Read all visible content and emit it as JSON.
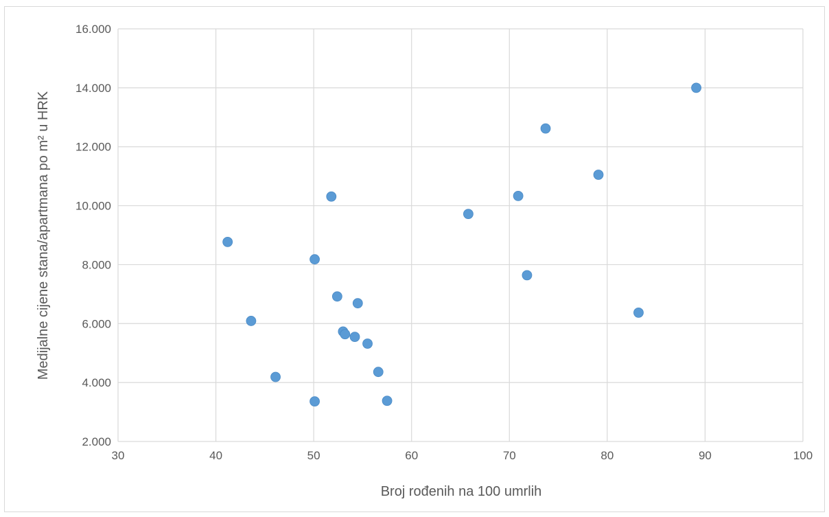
{
  "chart_data": {
    "type": "scatter",
    "title": "",
    "xlabel": "Broj rođenih na 100 umrlih",
    "ylabel": "Medijalne cijene stana/apartmana po m² u HRK",
    "xlim": [
      30,
      100
    ],
    "ylim": [
      2000,
      16000
    ],
    "x_ticks": [
      30,
      40,
      50,
      60,
      70,
      80,
      90,
      100
    ],
    "y_ticks": [
      2000,
      4000,
      6000,
      8000,
      10000,
      12000,
      14000,
      16000
    ],
    "x_tick_labels": [
      "30",
      "40",
      "50",
      "60",
      "70",
      "80",
      "90",
      "100"
    ],
    "y_tick_labels": [
      "2.000",
      "4.000",
      "6.000",
      "8.000",
      "10.000",
      "12.000",
      "14.000",
      "16.000"
    ],
    "grid": true,
    "legend": "none",
    "marker_color": "#5b9bd5",
    "series": [
      {
        "points": [
          {
            "x": 41.2,
            "y": 8770
          },
          {
            "x": 43.6,
            "y": 6090
          },
          {
            "x": 46.1,
            "y": 4190
          },
          {
            "x": 50.1,
            "y": 8180
          },
          {
            "x": 50.1,
            "y": 3360
          },
          {
            "x": 51.8,
            "y": 10310
          },
          {
            "x": 52.4,
            "y": 6920
          },
          {
            "x": 53.0,
            "y": 5730
          },
          {
            "x": 53.2,
            "y": 5640
          },
          {
            "x": 54.2,
            "y": 5550
          },
          {
            "x": 54.5,
            "y": 6690
          },
          {
            "x": 55.5,
            "y": 5320
          },
          {
            "x": 56.6,
            "y": 4360
          },
          {
            "x": 57.5,
            "y": 3380
          },
          {
            "x": 65.8,
            "y": 9720
          },
          {
            "x": 70.9,
            "y": 10330
          },
          {
            "x": 71.8,
            "y": 7640
          },
          {
            "x": 73.7,
            "y": 12620
          },
          {
            "x": 79.1,
            "y": 11050
          },
          {
            "x": 83.2,
            "y": 6370
          },
          {
            "x": 89.1,
            "y": 14000
          }
        ]
      }
    ]
  }
}
